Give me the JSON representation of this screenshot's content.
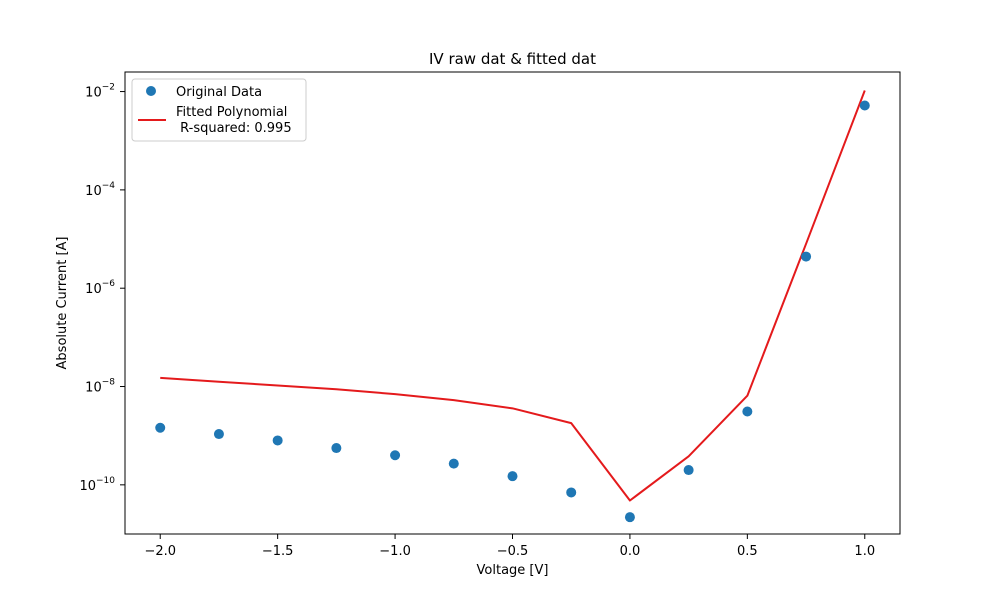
{
  "chart_data": {
    "type": "scatter",
    "title": "IV raw dat & fitted dat",
    "xlabel": "Voltage [V]",
    "ylabel": "Absolute Current [A]",
    "xlim": [
      -2.15,
      1.15
    ],
    "ylim": [
      1e-11,
      0.025
    ],
    "yscale": "log",
    "grid": false,
    "legend_position": "top-left",
    "x_ticks": [
      -2.0,
      -1.5,
      -1.0,
      -0.5,
      0.0,
      0.5,
      1.0
    ],
    "x_tick_labels": [
      "−2.0",
      "−1.5",
      "−1.0",
      "−0.5",
      "0.0",
      "0.5",
      "1.0"
    ],
    "y_ticks": [
      {
        "value": 1e-10,
        "base": "10",
        "exponent": "−10"
      },
      {
        "value": 1e-08,
        "base": "10",
        "exponent": "−8"
      },
      {
        "value": 1e-06,
        "base": "10",
        "exponent": "−6"
      },
      {
        "value": 0.0001,
        "base": "10",
        "exponent": "−4"
      },
      {
        "value": 0.01,
        "base": "10",
        "exponent": "−2"
      }
    ],
    "series": [
      {
        "name": "Original Data",
        "kind": "scatter",
        "color": "#1f77b4",
        "x": [
          -2.0,
          -1.75,
          -1.5,
          -1.25,
          -1.0,
          -0.75,
          -0.5,
          -0.25,
          0.0,
          0.25,
          0.5,
          0.75,
          1.0
        ],
        "y": [
          1.45e-09,
          1.08e-09,
          8e-10,
          5.6e-10,
          4e-10,
          2.7e-10,
          1.5e-10,
          7e-11,
          2.2e-11,
          2e-10,
          3.1e-09,
          4.4e-06,
          0.0052
        ]
      },
      {
        "name": "Fitted Polynomial\n R-squared: 0.995",
        "kind": "line",
        "color": "#e41a1c",
        "x": [
          -2.0,
          -1.75,
          -1.5,
          -1.25,
          -1.0,
          -0.75,
          -0.5,
          -0.25,
          0.0,
          0.25,
          0.5,
          0.75,
          1.0
        ],
        "y": [
          1.5e-08,
          1.25e-08,
          1.05e-08,
          8.8e-09,
          7e-09,
          5.3e-09,
          3.6e-09,
          1.8e-09,
          4.8e-11,
          3.8e-10,
          6.5e-09,
          8e-06,
          0.0105
        ]
      }
    ]
  }
}
